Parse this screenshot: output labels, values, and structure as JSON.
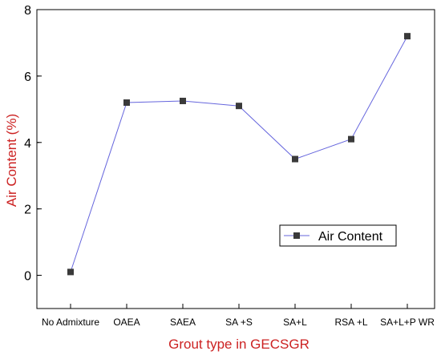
{
  "chart_data": {
    "type": "line",
    "title": "",
    "xlabel": "Grout type in GECSGR",
    "ylabel": "Air Content (%)",
    "categories": [
      "No Admixture",
      "OAEA",
      "SAEA",
      "SA +S",
      "SA+L",
      "RSA +L",
      "SA+L+P WR"
    ],
    "series": [
      {
        "name": "Air Content",
        "values": [
          0.1,
          5.2,
          5.25,
          5.1,
          3.5,
          4.1,
          7.2
        ]
      }
    ],
    "ylim": [
      -1,
      8
    ],
    "yticks": [
      0,
      2,
      4,
      6,
      8
    ],
    "grid": false,
    "legend": "lower-right",
    "colors": {
      "line": "#6666dd",
      "marker": "#3a3a3a",
      "axis_title": "#cc2222"
    }
  }
}
